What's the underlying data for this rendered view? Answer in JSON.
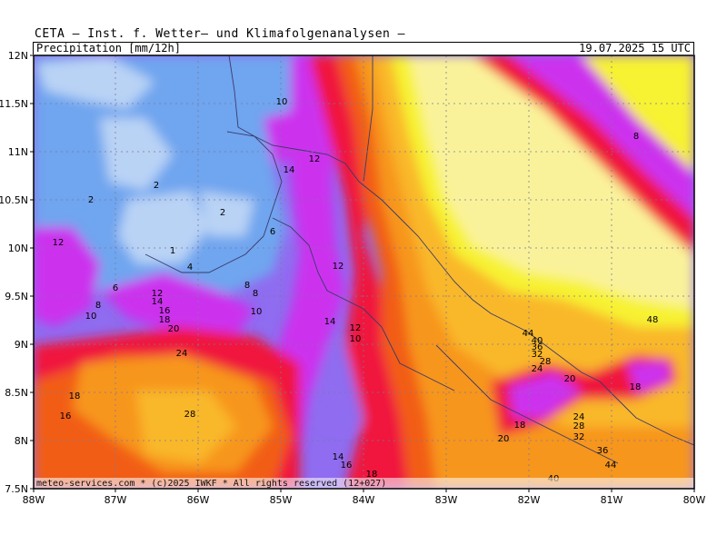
{
  "header": {
    "title": "CETA — Inst. f. Wetter— und Klimafolgenanalysen —",
    "subtitle": "Precipitation [mm/12h]",
    "valid_time": "19.07.2025 15 UTC"
  },
  "axes": {
    "lat_labels": [
      "12N",
      "11.5N",
      "11N",
      "10.5N",
      "10N",
      "9.5N",
      "9N",
      "8.5N",
      "8N",
      "7.5N"
    ],
    "lon_labels": [
      "88W",
      "87W",
      "86W",
      "85W",
      "84W",
      "83W",
      "82W",
      "81W",
      "80W"
    ]
  },
  "footer": "meteo-services.com * (c)2025 IWKF * All rights reserved (12+027)",
  "colors": {
    "light_blue": "#b9d3f5",
    "blue": "#6fa5ef",
    "violet": "#8f6cf0",
    "magenta": "#cc33ee",
    "red": "#f0143c",
    "orange_red": "#f25d18",
    "orange": "#f7961a",
    "light_orange": "#f9b829",
    "yellow": "#f7f233",
    "pale_yellow": "#faf29a"
  },
  "value_labels": [
    "10",
    "12",
    "14",
    "2",
    "2",
    "2",
    "12",
    "1",
    "6",
    "4",
    "6",
    "8",
    "10",
    "12",
    "14",
    "16",
    "18",
    "20",
    "24",
    "8",
    "8",
    "10",
    "12",
    "14",
    "12",
    "10",
    "18",
    "16",
    "28",
    "44",
    "40",
    "36",
    "32",
    "28",
    "24",
    "20",
    "18",
    "20",
    "18",
    "24",
    "28",
    "32",
    "36",
    "44",
    "40",
    "48",
    "8",
    "14",
    "16",
    "18"
  ]
}
